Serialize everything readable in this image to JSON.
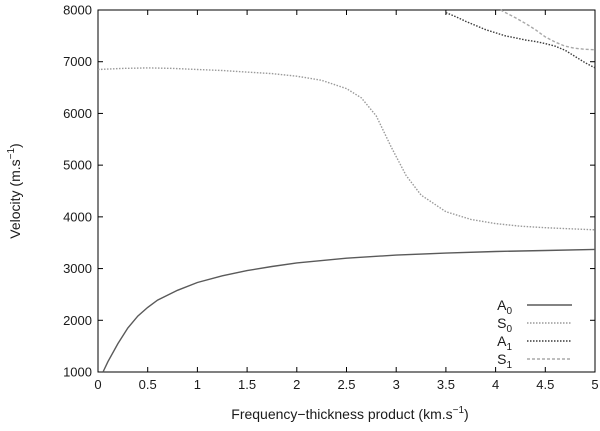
{
  "chart_data": {
    "type": "line",
    "xlabel": {
      "base": "Frequency−thickness product (km.s",
      "exp": "−1",
      "tail": ")"
    },
    "ylabel": {
      "base": "Velocity (m.s",
      "exp": "−1",
      "tail": ")"
    },
    "xlim": [
      0,
      5
    ],
    "ylim": [
      1000,
      8000
    ],
    "x_ticks": [
      0,
      0.5,
      1,
      1.5,
      2,
      2.5,
      3,
      3.5,
      4,
      4.5,
      5
    ],
    "x_tick_labels": [
      "0",
      "0.5",
      "1",
      "1.5",
      "2",
      "2.5",
      "3",
      "3.5",
      "4",
      "4.5",
      "5"
    ],
    "y_ticks": [
      1000,
      2000,
      3000,
      4000,
      5000,
      6000,
      7000,
      8000
    ],
    "y_tick_labels": [
      "1000",
      "2000",
      "3000",
      "4000",
      "5000",
      "6000",
      "7000",
      "8000"
    ],
    "grid": false,
    "legend_position": "bottom-right",
    "series": [
      {
        "name": "A",
        "sub": "0",
        "color": "#5a5a5a",
        "dash": "",
        "x": [
          0.05,
          0.1,
          0.2,
          0.3,
          0.4,
          0.5,
          0.6,
          0.8,
          1.0,
          1.25,
          1.5,
          1.75,
          2.0,
          2.5,
          3.0,
          3.5,
          4.0,
          4.5,
          5.0
        ],
        "y": [
          1000,
          1200,
          1550,
          1850,
          2080,
          2250,
          2390,
          2580,
          2730,
          2860,
          2960,
          3040,
          3110,
          3200,
          3260,
          3300,
          3330,
          3350,
          3370
        ]
      },
      {
        "name": "S",
        "sub": "0",
        "color": "#9a9a9a",
        "dash": "1.5,1.5",
        "x": [
          0.0,
          0.25,
          0.5,
          0.75,
          1.0,
          1.25,
          1.5,
          1.75,
          2.0,
          2.25,
          2.5,
          2.65,
          2.8,
          2.95,
          3.1,
          3.25,
          3.5,
          3.75,
          4.0,
          4.25,
          4.5,
          4.75,
          5.0
        ],
        "y": [
          6850,
          6870,
          6880,
          6870,
          6850,
          6830,
          6800,
          6770,
          6720,
          6640,
          6480,
          6300,
          5950,
          5350,
          4800,
          4420,
          4100,
          3950,
          3870,
          3820,
          3790,
          3770,
          3750
        ]
      },
      {
        "name": "A",
        "sub": "1",
        "color": "#3a3a3a",
        "dash": "1.5,1.5",
        "x": [
          3.5,
          3.6,
          3.7,
          3.8,
          3.9,
          4.0,
          4.1,
          4.2,
          4.3,
          4.4,
          4.5,
          4.6,
          4.7,
          4.8,
          4.9,
          5.0
        ],
        "y": [
          7950,
          7870,
          7780,
          7700,
          7620,
          7560,
          7500,
          7460,
          7420,
          7390,
          7350,
          7300,
          7220,
          7100,
          6980,
          6880
        ]
      },
      {
        "name": "S",
        "sub": "1",
        "color": "#a8a8a8",
        "dash": "3,2",
        "x": [
          4.05,
          4.1,
          4.2,
          4.3,
          4.4,
          4.5,
          4.6,
          4.7,
          4.8,
          4.9,
          5.0
        ],
        "y": [
          8000,
          7950,
          7850,
          7740,
          7620,
          7480,
          7380,
          7300,
          7260,
          7240,
          7230
        ]
      }
    ]
  }
}
